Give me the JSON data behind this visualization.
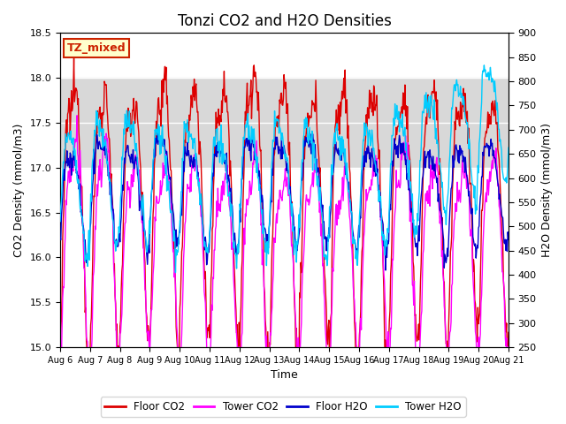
{
  "title": "Tonzi CO2 and H2O Densities",
  "xlabel": "Time",
  "ylabel_left": "CO2 Density (mmol/m3)",
  "ylabel_right": "H2O Density (mmol/m3)",
  "co2_ylim": [
    15.0,
    18.5
  ],
  "h2o_ylim": [
    250,
    900
  ],
  "co2_yticks": [
    15.0,
    15.5,
    16.0,
    16.5,
    17.0,
    17.5,
    18.0,
    18.5
  ],
  "h2o_yticks": [
    250,
    300,
    350,
    400,
    450,
    500,
    550,
    600,
    650,
    700,
    750,
    800,
    850,
    900
  ],
  "shade_co2_band": [
    17.0,
    18.0
  ],
  "shade_color": "#d8d8d8",
  "tz_label": "TZ_mixed",
  "tz_bg": "#ffffcc",
  "tz_edge": "#cc2200",
  "legend_labels": [
    "Floor CO2",
    "Tower CO2",
    "Floor H2O",
    "Tower H2O"
  ],
  "colors": [
    "#dd0000",
    "#ff00ff",
    "#0000cc",
    "#00ccff"
  ],
  "background_color": "#ffffff",
  "plot_bg": "#ffffff",
  "n_points": 720,
  "title_fontsize": 12,
  "axis_fontsize": 9,
  "tick_fontsize": 8
}
